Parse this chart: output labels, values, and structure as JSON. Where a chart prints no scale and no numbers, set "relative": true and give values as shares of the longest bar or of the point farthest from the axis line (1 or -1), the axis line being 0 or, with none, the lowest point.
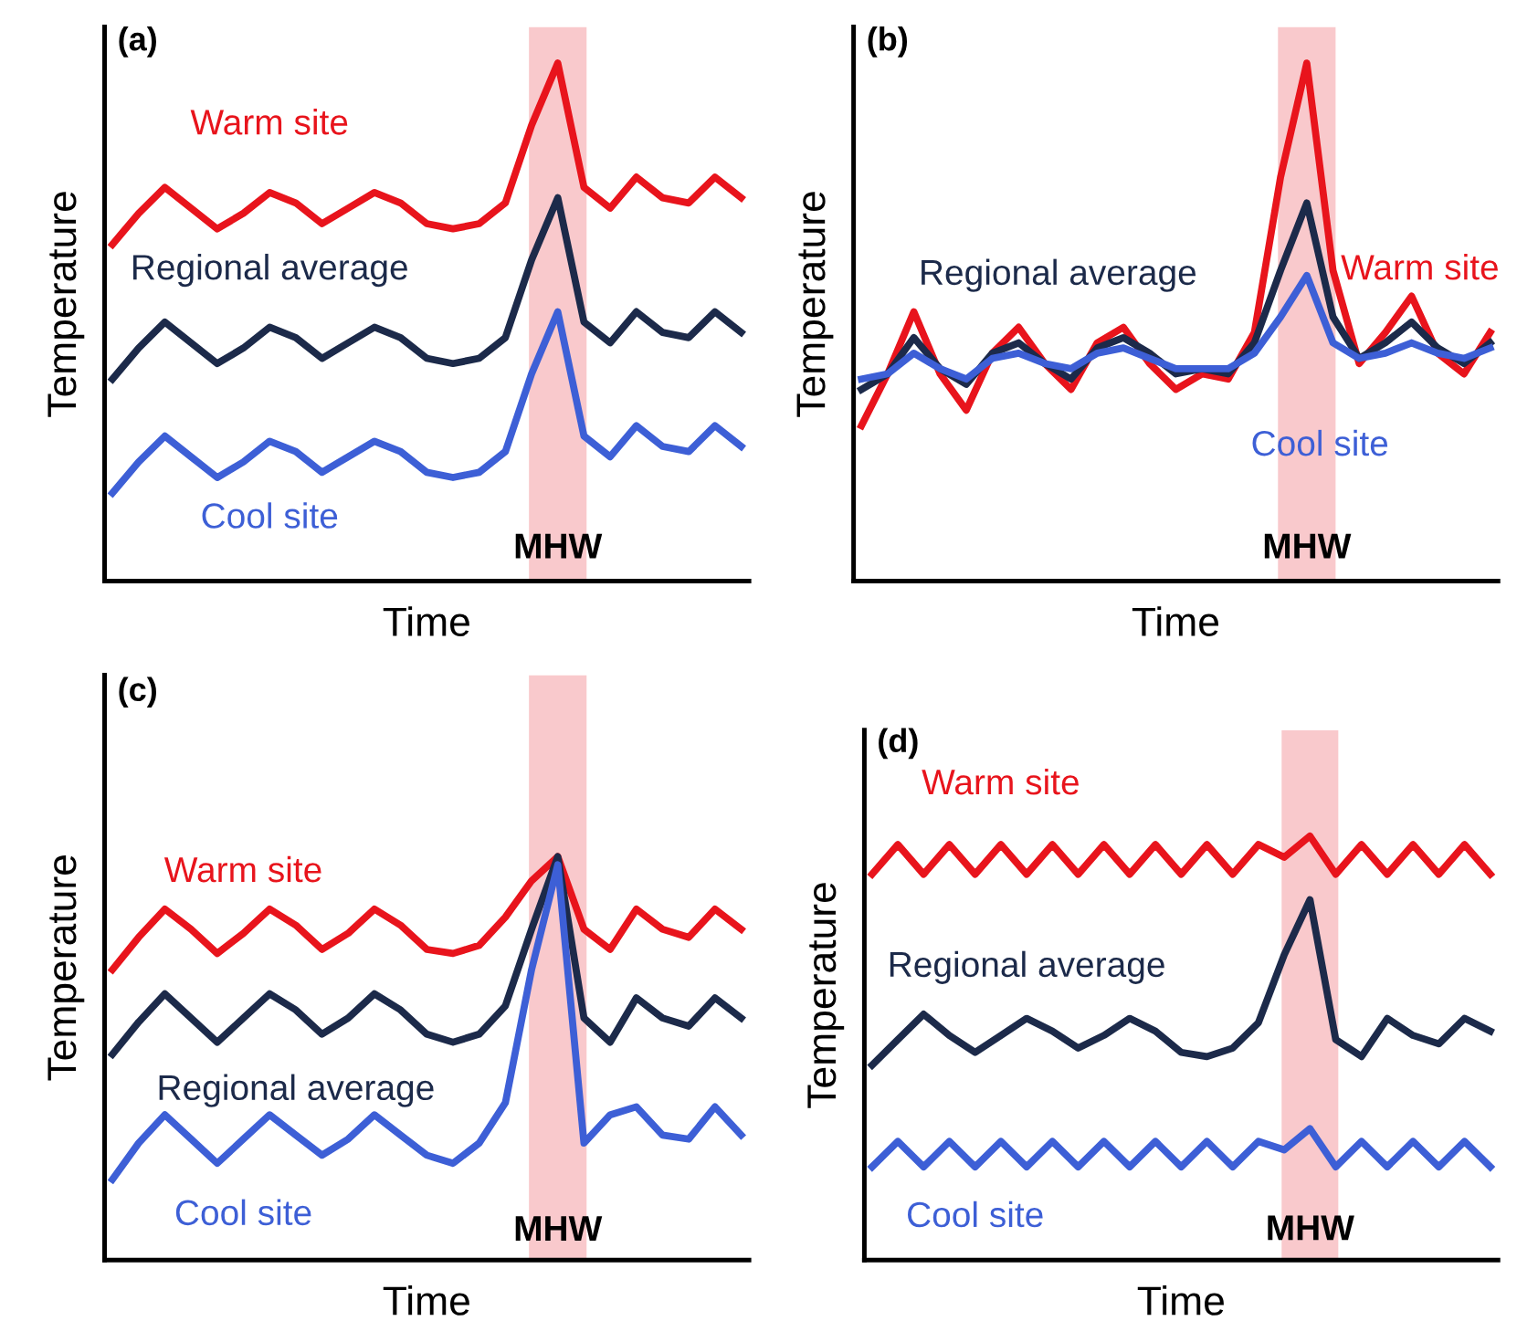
{
  "chart_data": [
    {
      "type": "line",
      "title": "(a)",
      "xlabel": "Time",
      "ylabel": "Temperature",
      "relative": true,
      "annotations": [
        "MHW"
      ],
      "categories": [
        null,
        null,
        null,
        null,
        null,
        null,
        null,
        null,
        null,
        null,
        null,
        null,
        null,
        null,
        null,
        null,
        null,
        null,
        null,
        null,
        null,
        null,
        null,
        null,
        null
      ],
      "series": [
        {
          "name": "Warm site",
          "color": "#e8141c",
          "values": [
            0.65,
            0.71,
            0.76,
            0.72,
            0.68,
            0.71,
            0.75,
            0.73,
            0.69,
            0.72,
            0.75,
            0.73,
            0.69,
            0.68,
            0.69,
            0.73,
            0.88,
            1.0,
            0.76,
            0.72,
            0.78,
            0.74,
            0.73,
            0.78,
            0.74
          ]
        },
        {
          "name": "Regional average",
          "color": "#1c2a4a",
          "values": [
            0.39,
            0.45,
            0.5,
            0.46,
            0.42,
            0.45,
            0.49,
            0.47,
            0.43,
            0.46,
            0.49,
            0.47,
            0.43,
            0.42,
            0.43,
            0.47,
            0.62,
            0.74,
            0.5,
            0.46,
            0.52,
            0.48,
            0.47,
            0.52,
            0.48
          ]
        },
        {
          "name": "Cool site",
          "color": "#3d5fd6",
          "values": [
            0.17,
            0.23,
            0.28,
            0.24,
            0.2,
            0.23,
            0.27,
            0.25,
            0.21,
            0.24,
            0.27,
            0.25,
            0.21,
            0.2,
            0.21,
            0.25,
            0.4,
            0.52,
            0.28,
            0.24,
            0.3,
            0.26,
            0.25,
            0.3,
            0.26
          ]
        }
      ]
    },
    {
      "type": "line",
      "title": "(b)",
      "xlabel": "Time",
      "ylabel": "Temperature",
      "relative": true,
      "annotations": [
        "MHW"
      ],
      "categories": [
        null,
        null,
        null,
        null,
        null,
        null,
        null,
        null,
        null,
        null,
        null,
        null,
        null,
        null,
        null,
        null,
        null,
        null,
        null,
        null,
        null,
        null,
        null,
        null,
        null
      ],
      "series": [
        {
          "name": "Warm site",
          "color": "#e8141c",
          "values": [
            0.3,
            0.4,
            0.52,
            0.4,
            0.33,
            0.44,
            0.49,
            0.42,
            0.37,
            0.46,
            0.49,
            0.42,
            0.37,
            0.4,
            0.39,
            0.48,
            0.78,
            1.0,
            0.6,
            0.42,
            0.48,
            0.55,
            0.44,
            0.4,
            0.48
          ]
        },
        {
          "name": "Regional average",
          "color": "#1c2a4a",
          "values": [
            0.37,
            0.4,
            0.47,
            0.41,
            0.38,
            0.44,
            0.46,
            0.42,
            0.39,
            0.45,
            0.47,
            0.44,
            0.4,
            0.41,
            0.4,
            0.46,
            0.6,
            0.73,
            0.51,
            0.43,
            0.46,
            0.5,
            0.45,
            0.42,
            0.46
          ]
        },
        {
          "name": "Cool site",
          "color": "#3d5fd6",
          "values": [
            0.39,
            0.4,
            0.44,
            0.41,
            0.39,
            0.43,
            0.44,
            0.42,
            0.41,
            0.44,
            0.45,
            0.43,
            0.41,
            0.41,
            0.41,
            0.44,
            0.51,
            0.59,
            0.46,
            0.43,
            0.44,
            0.46,
            0.44,
            0.43,
            0.45
          ]
        }
      ]
    },
    {
      "type": "line",
      "title": "(c)",
      "xlabel": "Time",
      "ylabel": "Temperature",
      "relative": true,
      "annotations": [
        "MHW"
      ],
      "categories": [
        null,
        null,
        null,
        null,
        null,
        null,
        null,
        null,
        null,
        null,
        null,
        null,
        null,
        null,
        null,
        null,
        null,
        null,
        null,
        null,
        null,
        null,
        null,
        null,
        null
      ],
      "series": [
        {
          "name": "Warm site",
          "color": "#e8141c",
          "values": [
            0.72,
            0.8,
            0.87,
            0.82,
            0.76,
            0.81,
            0.87,
            0.83,
            0.77,
            0.81,
            0.87,
            0.83,
            0.77,
            0.76,
            0.78,
            0.85,
            0.94,
            1.0,
            0.82,
            0.77,
            0.87,
            0.82,
            0.8,
            0.87,
            0.82
          ]
        },
        {
          "name": "Regional average",
          "color": "#1c2a4a",
          "values": [
            0.51,
            0.59,
            0.66,
            0.6,
            0.54,
            0.6,
            0.66,
            0.62,
            0.56,
            0.6,
            0.66,
            0.62,
            0.56,
            0.54,
            0.56,
            0.63,
            0.82,
            1.0,
            0.6,
            0.54,
            0.65,
            0.6,
            0.58,
            0.65,
            0.6
          ]
        },
        {
          "name": "Cool site",
          "color": "#3d5fd6",
          "values": [
            0.2,
            0.29,
            0.36,
            0.3,
            0.24,
            0.3,
            0.36,
            0.31,
            0.26,
            0.3,
            0.36,
            0.31,
            0.26,
            0.24,
            0.29,
            0.39,
            0.72,
            0.98,
            0.29,
            0.36,
            0.38,
            0.31,
            0.3,
            0.38,
            0.31
          ]
        }
      ]
    },
    {
      "type": "line",
      "title": "(d)",
      "xlabel": "Time",
      "ylabel": "Temperature",
      "relative": true,
      "annotations": [
        "MHW"
      ],
      "categories": [
        null,
        null,
        null,
        null,
        null,
        null,
        null,
        null,
        null,
        null,
        null,
        null,
        null,
        null,
        null,
        null,
        null,
        null,
        null,
        null,
        null,
        null,
        null,
        null,
        null
      ],
      "series": [
        {
          "name": "Warm site",
          "color": "#e8141c",
          "values": [
            0.91,
            0.98,
            0.91,
            0.98,
            0.91,
            0.98,
            0.91,
            0.98,
            0.91,
            0.98,
            0.91,
            0.98,
            0.91,
            0.98,
            0.91,
            0.98,
            0.95,
            1.0,
            0.91,
            0.98,
            0.91,
            0.98,
            0.91,
            0.98,
            0.91
          ]
        },
        {
          "name": "Regional average",
          "color": "#1c2a4a",
          "values": [
            0.46,
            0.52,
            0.58,
            0.53,
            0.49,
            0.53,
            0.57,
            0.54,
            0.5,
            0.53,
            0.57,
            0.54,
            0.49,
            0.48,
            0.5,
            0.56,
            0.72,
            0.85,
            0.52,
            0.48,
            0.57,
            0.53,
            0.51,
            0.57,
            0.54
          ]
        },
        {
          "name": "Cool site",
          "color": "#3d5fd6",
          "values": [
            0.22,
            0.28,
            0.22,
            0.28,
            0.22,
            0.28,
            0.22,
            0.28,
            0.22,
            0.28,
            0.22,
            0.28,
            0.22,
            0.28,
            0.22,
            0.28,
            0.26,
            0.31,
            0.22,
            0.28,
            0.22,
            0.28,
            0.22,
            0.28,
            0.22
          ]
        }
      ]
    }
  ]
}
